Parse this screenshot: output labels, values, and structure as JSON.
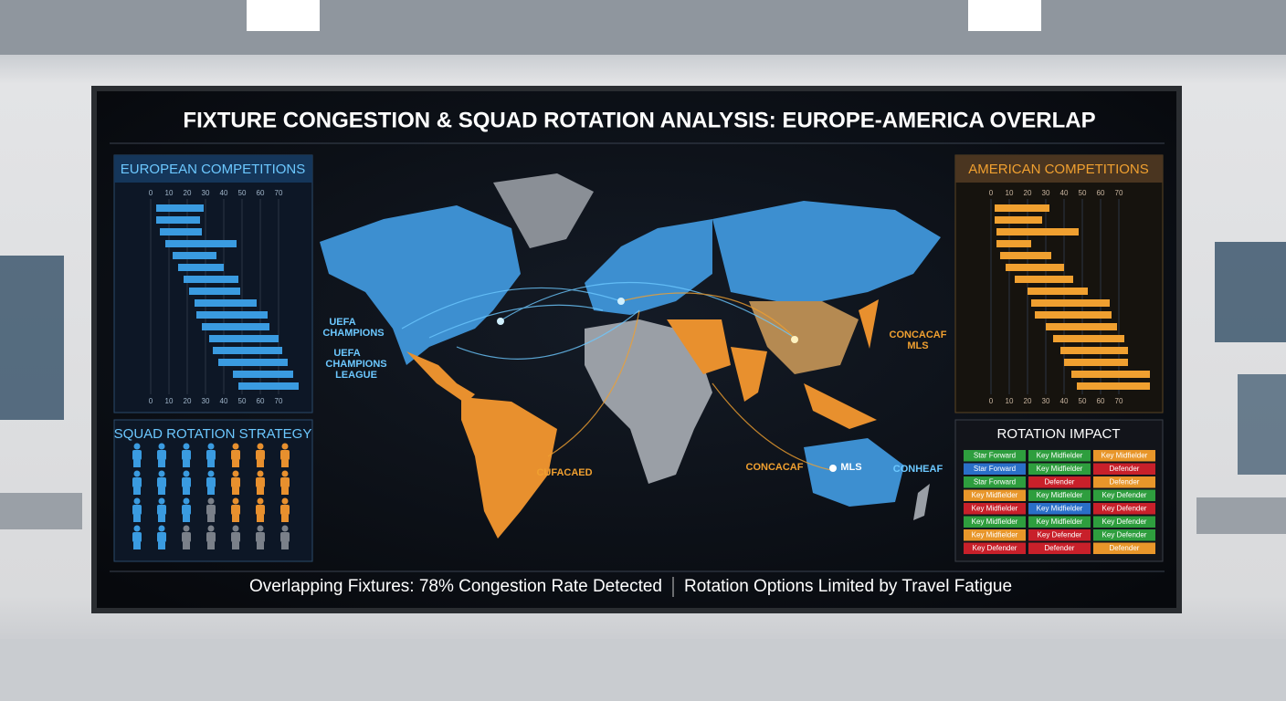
{
  "header": {
    "title": "FIXTURE CONGESTION & SQUAD ROTATION ANALYSIS: EUROPE-AMERICA OVERLAP"
  },
  "european": {
    "title": "EUROPEAN COMPETITIONS",
    "color": "#3a9be0",
    "xlim": [
      0,
      85
    ],
    "xticks": [
      0,
      10,
      20,
      30,
      40,
      50,
      60,
      70
    ],
    "starts": [
      3,
      3,
      5,
      8,
      12,
      15,
      18,
      21,
      24,
      25,
      28,
      32,
      34,
      37,
      45,
      48
    ],
    "ends": [
      29,
      27,
      28,
      47,
      36,
      40,
      48,
      49,
      58,
      64,
      65,
      70,
      72,
      75,
      78,
      81
    ]
  },
  "american": {
    "title": "AMERICAN COMPETITIONS",
    "color": "#f0a030",
    "xlim": [
      0,
      90
    ],
    "xticks": [
      0,
      10,
      20,
      30,
      40,
      50,
      60,
      70
    ],
    "starts": [
      2,
      2,
      3,
      3,
      5,
      8,
      13,
      20,
      22,
      24,
      30,
      34,
      38,
      40,
      44,
      47
    ],
    "ends": [
      32,
      28,
      48,
      22,
      33,
      40,
      45,
      53,
      65,
      66,
      69,
      73,
      75,
      75,
      87,
      87
    ]
  },
  "squad": {
    "title": "SQUAD ROTATION STRATEGY"
  },
  "impact": {
    "title": "ROTATION IMPACT",
    "rows": [
      [
        {
          "text": "Star Forward",
          "color": "#2e9e3e"
        },
        {
          "text": "Key Midfielder",
          "color": "#2e9e3e"
        },
        {
          "text": "Key Midfielder",
          "color": "#e8962a"
        }
      ],
      [
        {
          "text": "Star Forward",
          "color": "#2a6fc8"
        },
        {
          "text": "Key Midfielder",
          "color": "#2e9e3e"
        },
        {
          "text": "Defender",
          "color": "#c8202a"
        }
      ],
      [
        {
          "text": "Star Forward",
          "color": "#2e9e3e"
        },
        {
          "text": "Defender",
          "color": "#c8202a"
        },
        {
          "text": "Defender",
          "color": "#e8962a"
        }
      ],
      [
        {
          "text": "Key Midfielder",
          "color": "#e8962a"
        },
        {
          "text": "Key Midfielder",
          "color": "#2e9e3e"
        },
        {
          "text": "Key Defender",
          "color": "#2e9e3e"
        }
      ],
      [
        {
          "text": "Key Midfielder",
          "color": "#c8202a"
        },
        {
          "text": "Key Midfielder",
          "color": "#2a6fc8"
        },
        {
          "text": "Key Defender",
          "color": "#c8202a"
        }
      ],
      [
        {
          "text": "Key Midfielder",
          "color": "#2e9e3e"
        },
        {
          "text": "Key Midfielder",
          "color": "#2e9e3e"
        },
        {
          "text": "Key Defender",
          "color": "#2e9e3e"
        }
      ],
      [
        {
          "text": "Key Midfielder",
          "color": "#e8962a"
        },
        {
          "text": "Key Defender",
          "color": "#c8202a"
        },
        {
          "text": "Key Defender",
          "color": "#2e9e3e"
        }
      ],
      [
        {
          "text": "Key Defender",
          "color": "#c8202a"
        },
        {
          "text": "Defender",
          "color": "#c8202a"
        },
        {
          "text": "Defender",
          "color": "#e8962a"
        }
      ]
    ]
  },
  "map": {
    "labels": [
      "UEFA",
      "CHAMPIONS",
      "UEFA",
      "CHAMPIONS",
      "LEAGUE",
      "CONCACAF",
      "MLS",
      "CUFACAED",
      "CONCACAF",
      "MLS",
      "CONHEAF"
    ]
  },
  "footer": {
    "left": "Overlapping Fixtures: 78% Congestion Rate Detected",
    "right": "Rotation Options Limited by Travel Fatigue"
  }
}
